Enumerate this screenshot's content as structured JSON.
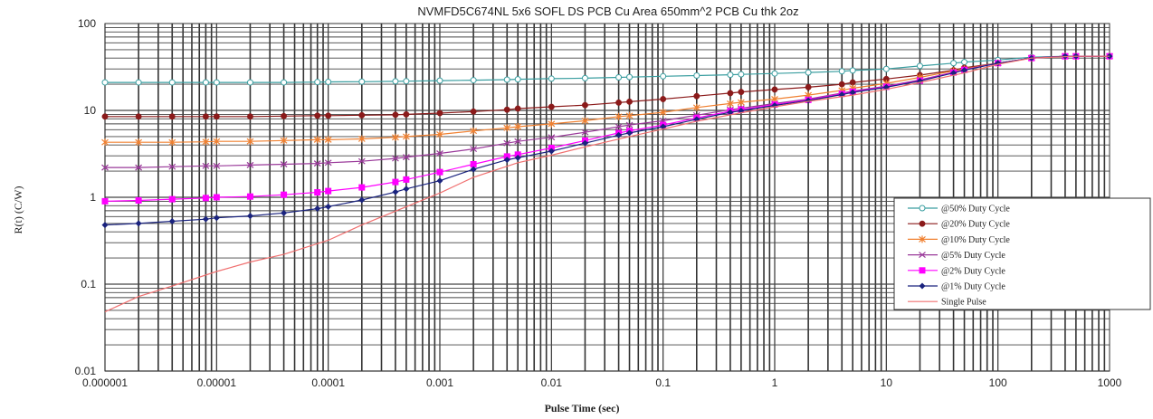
{
  "chart_data": {
    "type": "line",
    "title": "NVMFD5C674NL 5x6 SOFL DS   PCB Cu Area 650mm^2  PCB Cu thk 2oz",
    "xlabel": "Pulse Time (sec)",
    "ylabel": "R(t) (C/W)",
    "xscale": "log",
    "yscale": "log",
    "xlim": [
      1e-06,
      1000
    ],
    "ylim": [
      0.01,
      100
    ],
    "grid": true,
    "legend_position": "right",
    "x_tick_labels": [
      "0.000001",
      "0.00001",
      "0.0001",
      "0.001",
      "0.01",
      "0.1",
      "1",
      "10",
      "100",
      "1000"
    ],
    "y_tick_labels": [
      "0.01",
      "0.1",
      "1",
      "10",
      "100"
    ],
    "series": [
      {
        "name": "@50% Duty Cycle",
        "color": "#3a9ea0",
        "marker": "circle-open",
        "x": [
          1e-06,
          2e-06,
          4e-06,
          8e-06,
          1e-05,
          2e-05,
          4e-05,
          8e-05,
          0.0001,
          0.0002,
          0.0004,
          0.0005,
          0.001,
          0.002,
          0.004,
          0.005,
          0.01,
          0.02,
          0.04,
          0.05,
          0.1,
          0.2,
          0.4,
          0.5,
          1,
          2,
          4,
          5,
          10,
          20,
          40,
          50,
          100,
          200,
          400,
          500,
          1000
        ],
        "y": [
          21,
          21,
          21,
          21,
          21,
          21,
          21,
          21.2,
          21.3,
          21.4,
          21.6,
          21.7,
          22,
          22.3,
          22.6,
          22.8,
          23.2,
          23.5,
          24,
          24.2,
          24.7,
          25.2,
          25.7,
          26,
          26.6,
          27.3,
          28.2,
          28.8,
          30,
          32.5,
          35,
          36,
          38,
          41,
          42,
          42,
          42
        ]
      },
      {
        "name": "@20% Duty Cycle",
        "color": "#8b1a1a",
        "marker": "circle",
        "x": [
          1e-06,
          2e-06,
          4e-06,
          8e-06,
          1e-05,
          2e-05,
          4e-05,
          8e-05,
          0.0001,
          0.0002,
          0.0004,
          0.0005,
          0.001,
          0.002,
          0.004,
          0.005,
          0.01,
          0.02,
          0.04,
          0.05,
          0.1,
          0.2,
          0.4,
          0.5,
          1,
          2,
          4,
          5,
          10,
          20,
          40,
          50,
          100,
          200,
          400,
          500,
          1000
        ],
        "y": [
          8.5,
          8.5,
          8.5,
          8.5,
          8.5,
          8.5,
          8.6,
          8.7,
          8.7,
          8.8,
          8.9,
          9,
          9.3,
          9.7,
          10.2,
          10.5,
          11,
          11.5,
          12.3,
          12.6,
          13.5,
          14.6,
          15.8,
          16.3,
          17.4,
          18.5,
          20,
          21,
          23,
          25.5,
          29,
          31,
          35,
          40,
          42,
          42,
          42
        ]
      },
      {
        "name": "@10% Duty Cycle",
        "color": "#f08030",
        "marker": "star",
        "x": [
          1e-06,
          2e-06,
          4e-06,
          8e-06,
          1e-05,
          2e-05,
          4e-05,
          8e-05,
          0.0001,
          0.0002,
          0.0004,
          0.0005,
          0.001,
          0.002,
          0.004,
          0.005,
          0.01,
          0.02,
          0.04,
          0.05,
          0.1,
          0.2,
          0.4,
          0.5,
          1,
          2,
          4,
          5,
          10,
          20,
          40,
          50,
          100,
          200,
          400,
          500,
          1000
        ],
        "y": [
          4.3,
          4.3,
          4.3,
          4.35,
          4.4,
          4.4,
          4.5,
          4.6,
          4.6,
          4.7,
          4.9,
          5,
          5.3,
          5.8,
          6.3,
          6.5,
          7,
          7.6,
          8.5,
          8.7,
          9.5,
          10.8,
          12,
          12.4,
          13.5,
          15,
          17,
          18,
          20.5,
          24,
          28.5,
          30,
          35,
          40,
          42,
          42,
          42
        ]
      },
      {
        "name": "@5% Duty Cycle",
        "color": "#9a3a9a",
        "marker": "x",
        "x": [
          1e-06,
          2e-06,
          4e-06,
          8e-06,
          1e-05,
          2e-05,
          4e-05,
          8e-05,
          0.0001,
          0.0002,
          0.0004,
          0.0005,
          0.001,
          0.002,
          0.004,
          0.005,
          0.01,
          0.02,
          0.04,
          0.05,
          0.1,
          0.2,
          0.4,
          0.5,
          1,
          2,
          4,
          5,
          10,
          20,
          40,
          50,
          100,
          200,
          400,
          500,
          1000
        ],
        "y": [
          2.2,
          2.2,
          2.25,
          2.3,
          2.3,
          2.35,
          2.4,
          2.45,
          2.5,
          2.6,
          2.8,
          2.9,
          3.2,
          3.6,
          4.2,
          4.4,
          4.9,
          5.6,
          6.5,
          6.8,
          7.6,
          8.8,
          10.2,
          10.6,
          12,
          13.5,
          15.8,
          16.7,
          19,
          22.5,
          27.5,
          29.5,
          35,
          40,
          42,
          42,
          42
        ]
      },
      {
        "name": "@2% Duty Cycle",
        "color": "#ff00ff",
        "marker": "square",
        "x": [
          1e-06,
          2e-06,
          4e-06,
          8e-06,
          1e-05,
          2e-05,
          4e-05,
          8e-05,
          0.0001,
          0.0002,
          0.0004,
          0.0005,
          0.001,
          0.002,
          0.004,
          0.005,
          0.01,
          0.02,
          0.04,
          0.05,
          0.1,
          0.2,
          0.4,
          0.5,
          1,
          2,
          4,
          5,
          10,
          20,
          40,
          50,
          100,
          200,
          400,
          500,
          1000
        ],
        "y": [
          0.9,
          0.92,
          0.95,
          0.98,
          1,
          1.02,
          1.07,
          1.14,
          1.18,
          1.3,
          1.5,
          1.6,
          1.95,
          2.4,
          2.95,
          3.1,
          3.7,
          4.5,
          5.5,
          5.8,
          6.8,
          8.2,
          9.8,
          10.2,
          11.7,
          13.2,
          15.5,
          16.4,
          18.7,
          22,
          27.3,
          29.3,
          35,
          40,
          42,
          42,
          42
        ]
      },
      {
        "name": "@1% Duty Cycle",
        "color": "#1a237e",
        "marker": "diamond",
        "x": [
          1e-06,
          2e-06,
          4e-06,
          8e-06,
          1e-05,
          2e-05,
          4e-05,
          8e-05,
          0.0001,
          0.0002,
          0.0004,
          0.0005,
          0.001,
          0.002,
          0.004,
          0.005,
          0.01,
          0.02,
          0.04,
          0.05,
          0.1,
          0.2,
          0.4,
          0.5,
          1,
          2,
          4,
          5,
          10,
          20,
          40,
          50,
          100,
          200,
          400,
          500,
          1000
        ],
        "y": [
          0.48,
          0.5,
          0.53,
          0.56,
          0.58,
          0.61,
          0.66,
          0.74,
          0.78,
          0.93,
          1.15,
          1.25,
          1.55,
          2.1,
          2.7,
          2.85,
          3.4,
          4.2,
          5.2,
          5.5,
          6.5,
          7.9,
          9.5,
          9.9,
          11.4,
          13,
          15.2,
          16.1,
          18.5,
          21.8,
          27,
          29,
          35,
          40,
          42,
          42,
          42
        ]
      },
      {
        "name": "Single Pulse",
        "color": "#f07070",
        "marker": "none",
        "x": [
          1e-06,
          2e-06,
          4e-06,
          1e-05,
          2e-05,
          4e-05,
          0.0001,
          0.0002,
          0.0005,
          0.001,
          0.002,
          0.005,
          0.01,
          0.02,
          0.05,
          0.1,
          0.2,
          0.5,
          1,
          2,
          5,
          10,
          20,
          50,
          100,
          200,
          500,
          1000
        ],
        "y": [
          0.048,
          0.072,
          0.095,
          0.14,
          0.18,
          0.22,
          0.32,
          0.48,
          0.78,
          1.12,
          1.7,
          2.5,
          3.05,
          3.8,
          5,
          6.1,
          7.5,
          9.4,
          11,
          12.7,
          15,
          17.5,
          21,
          27,
          34,
          40,
          42,
          42
        ]
      }
    ]
  }
}
